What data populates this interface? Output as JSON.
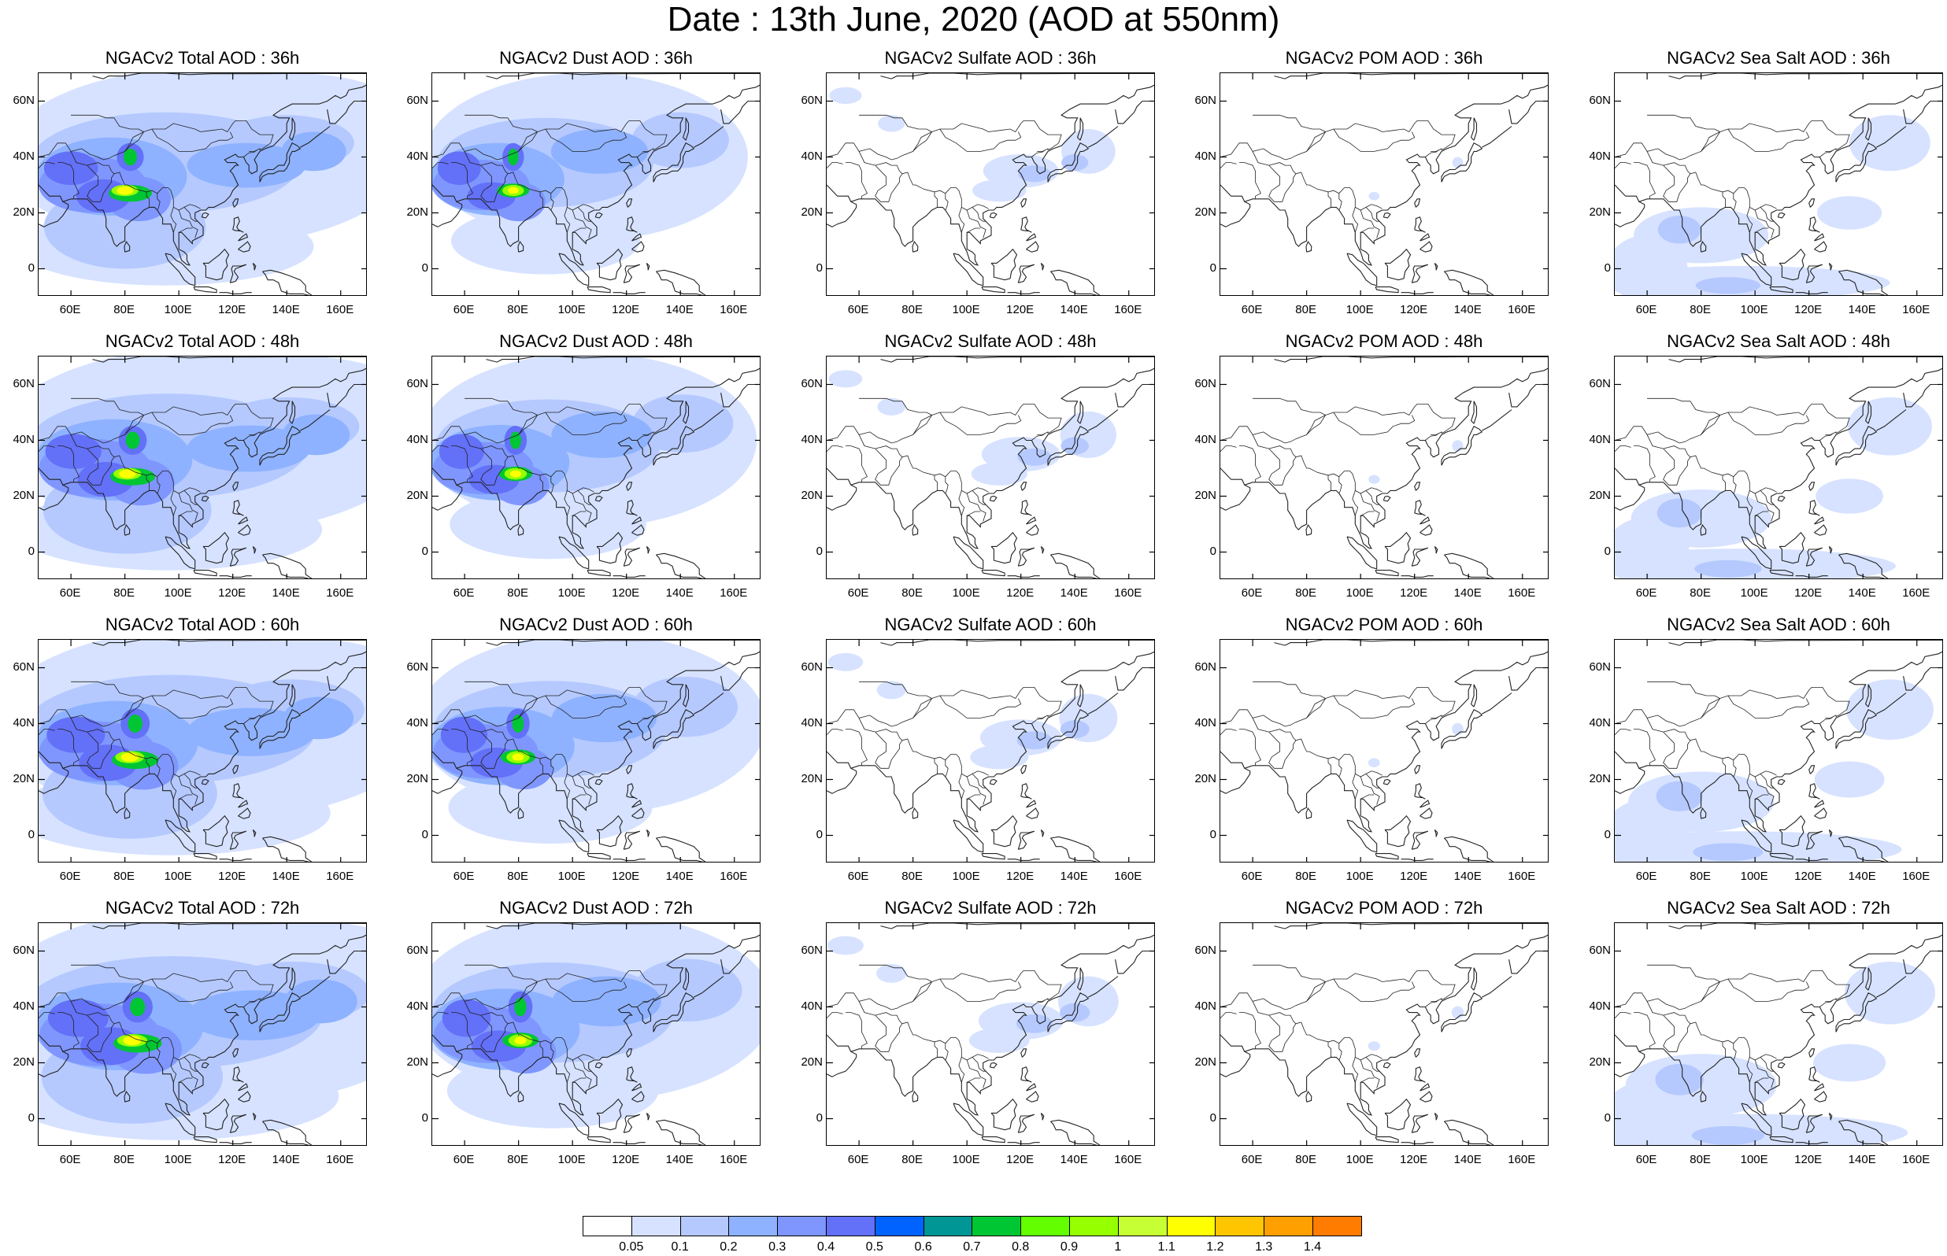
{
  "title": "Date : 13th June, 2020 (AOD at 550nm)",
  "species": [
    "Total",
    "Dust",
    "Sulfate",
    "POM",
    "Sea Salt"
  ],
  "forecast_hours": [
    "36h",
    "48h",
    "60h",
    "72h"
  ],
  "panels": [
    [
      "NGACv2 Total AOD : 36h",
      "NGACv2 Dust AOD : 36h",
      "NGACv2 Sulfate AOD : 36h",
      "NGACv2 POM AOD : 36h",
      "NGACv2 Sea Salt AOD : 36h"
    ],
    [
      "NGACv2 Total AOD : 48h",
      "NGACv2 Dust AOD : 48h",
      "NGACv2 Sulfate AOD : 48h",
      "NGACv2 POM AOD : 48h",
      "NGACv2 Sea Salt AOD : 48h"
    ],
    [
      "NGACv2 Total AOD : 60h",
      "NGACv2 Dust AOD : 60h",
      "NGACv2 Sulfate AOD : 60h",
      "NGACv2 POM AOD : 60h",
      "NGACv2 Sea Salt AOD : 60h"
    ],
    [
      "NGACv2 Total AOD : 72h",
      "NGACv2 Dust AOD : 72h",
      "NGACv2 Sulfate AOD : 72h",
      "NGACv2 POM AOD : 72h",
      "NGACv2 Sea Salt  AOD : 72h"
    ]
  ],
  "map": {
    "lon_range": [
      48,
      170
    ],
    "lat_range": [
      -10,
      70
    ],
    "lon_ticks": [
      60,
      80,
      100,
      120,
      140,
      160
    ],
    "lon_tick_labels": [
      "60E",
      "80E",
      "100E",
      "120E",
      "140E",
      "160E"
    ],
    "lat_ticks": [
      0,
      20,
      40,
      60
    ],
    "lat_tick_labels": [
      "0",
      "20N",
      "40N",
      "60N"
    ]
  },
  "colorbar": {
    "labels": [
      "0.05",
      "0.1",
      "0.2",
      "0.3",
      "0.4",
      "0.5",
      "0.6",
      "0.7",
      "0.8",
      "0.9",
      "1",
      "1.1",
      "1.2",
      "1.3",
      "1.4"
    ],
    "colors": [
      "#ffffff",
      "#d6e2ff",
      "#b5c9ff",
      "#8eb2ff",
      "#7f96ff",
      "#6370f8",
      "#0063ff",
      "#009696",
      "#00c633",
      "#63ff00",
      "#96ff00",
      "#c6ff33",
      "#ffff00",
      "#ffc600",
      "#ffa000",
      "#ff7c00",
      "#ff1900"
    ]
  },
  "field_colors": {
    "bg_light": "#d6e2ff",
    "bg_mid": "#b5c9ff",
    "level3": "#8eb2ff",
    "level4": "#7f96ff",
    "level5": "#6370f8",
    "green": "#00c633",
    "lime": "#96ff00",
    "yellow": "#ffff00"
  }
}
